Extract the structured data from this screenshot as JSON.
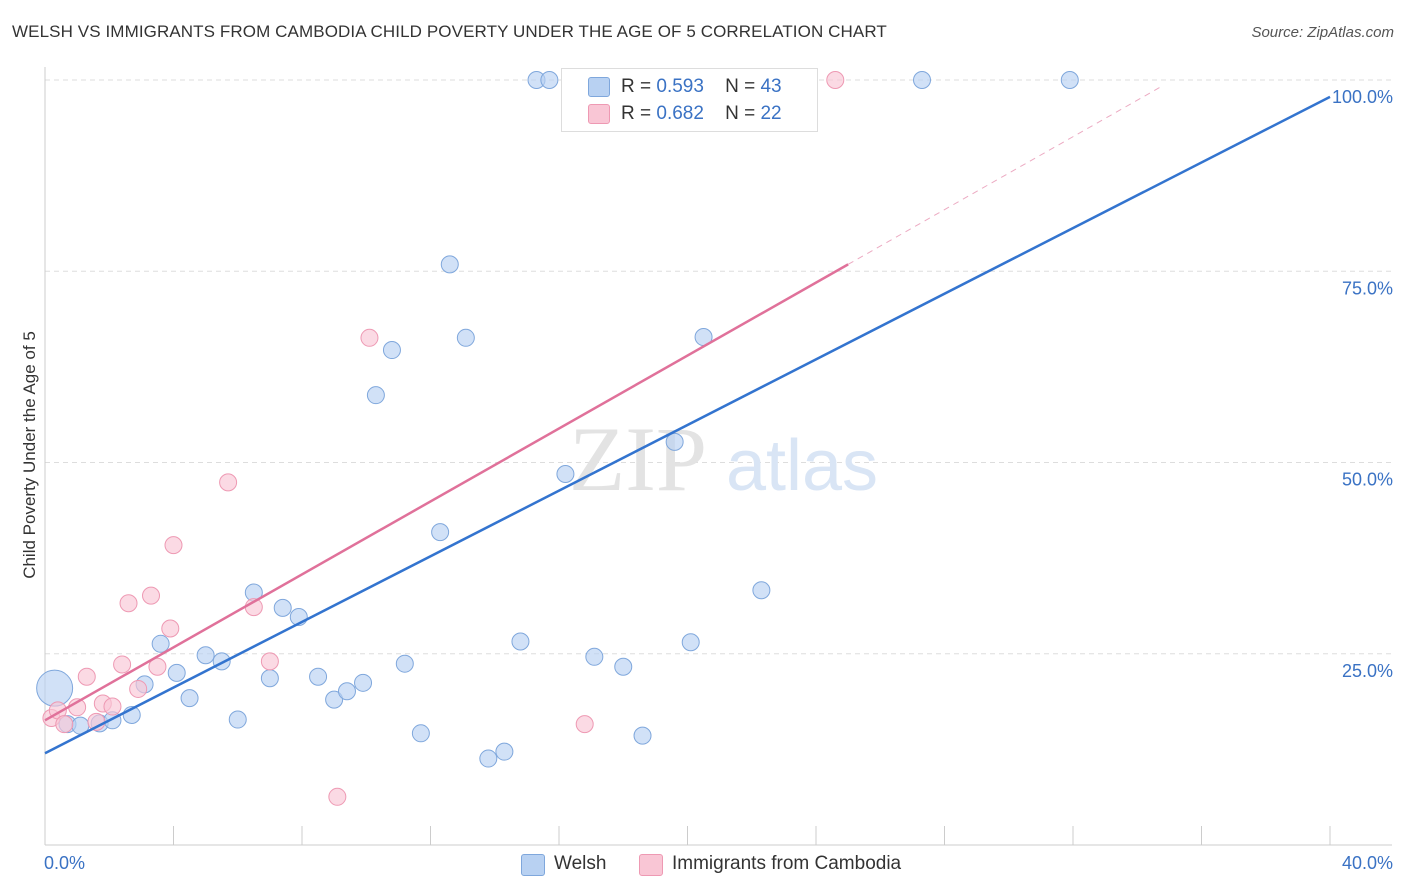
{
  "header": {
    "title": "WELSH VS IMMIGRANTS FROM CAMBODIA CHILD POVERTY UNDER THE AGE OF 5 CORRELATION CHART",
    "source": "Source: ZipAtlas.com"
  },
  "watermark": {
    "zip": "ZIP",
    "atlas": "atlas"
  },
  "legend": {
    "r_label": "R =",
    "n_label": "N =",
    "entries": [
      {
        "r": "0.593",
        "n": "43"
      },
      {
        "r": "0.682",
        "n": "22"
      }
    ]
  },
  "colors": {
    "welsh_fill": "#b8d1f2",
    "welsh_stroke": "#7fa7dc",
    "welsh_line": "#3374cf",
    "cambodia_fill": "#f9c6d5",
    "cambodia_stroke": "#ee99b3",
    "cambodia_line": "#e0719a",
    "axis_label": "#3a72c4",
    "grid": "#dddddd"
  },
  "chart_data": {
    "type": "scatter",
    "title": "WELSH VS IMMIGRANTS FROM CAMBODIA CHILD POVERTY UNDER THE AGE OF 5 CORRELATION CHART",
    "xlabel": "",
    "ylabel": "Child Poverty Under the Age of 5",
    "xlim": [
      0,
      40
    ],
    "ylim": [
      0,
      100
    ],
    "x_tick_labels": {
      "min": "0.0%",
      "max": "40.0%"
    },
    "y_ticks": [
      {
        "value": 25,
        "label": "25.0%"
      },
      {
        "value": 50,
        "label": "50.0%"
      },
      {
        "value": 75,
        "label": "75.0%"
      },
      {
        "value": 100,
        "label": "100.0%"
      }
    ],
    "grid": true,
    "legend_position": "top-center",
    "series": [
      {
        "name": "Welsh",
        "color": "#3374cf",
        "points": [
          {
            "x": 0.3,
            "y": 20.5,
            "size": "large"
          },
          {
            "x": 0.7,
            "y": 15.8
          },
          {
            "x": 1.1,
            "y": 15.6
          },
          {
            "x": 1.7,
            "y": 15.9
          },
          {
            "x": 2.1,
            "y": 16.3
          },
          {
            "x": 2.7,
            "y": 17.0
          },
          {
            "x": 3.1,
            "y": 21.0
          },
          {
            "x": 3.6,
            "y": 26.3
          },
          {
            "x": 4.1,
            "y": 22.5
          },
          {
            "x": 4.5,
            "y": 19.2
          },
          {
            "x": 5.0,
            "y": 24.8
          },
          {
            "x": 5.5,
            "y": 24.0
          },
          {
            "x": 6.0,
            "y": 16.4
          },
          {
            "x": 6.5,
            "y": 33.0
          },
          {
            "x": 7.0,
            "y": 21.8
          },
          {
            "x": 7.4,
            "y": 31.0
          },
          {
            "x": 7.9,
            "y": 29.8
          },
          {
            "x": 8.5,
            "y": 22.0
          },
          {
            "x": 9.0,
            "y": 19.0
          },
          {
            "x": 9.4,
            "y": 20.1
          },
          {
            "x": 9.9,
            "y": 21.2
          },
          {
            "x": 10.3,
            "y": 58.8
          },
          {
            "x": 10.8,
            "y": 64.7
          },
          {
            "x": 11.2,
            "y": 23.7
          },
          {
            "x": 11.7,
            "y": 14.6
          },
          {
            "x": 12.3,
            "y": 40.9
          },
          {
            "x": 12.6,
            "y": 75.9
          },
          {
            "x": 13.1,
            "y": 66.3
          },
          {
            "x": 13.8,
            "y": 11.3
          },
          {
            "x": 14.3,
            "y": 12.2
          },
          {
            "x": 14.8,
            "y": 26.6
          },
          {
            "x": 15.3,
            "y": 100
          },
          {
            "x": 15.7,
            "y": 100
          },
          {
            "x": 16.2,
            "y": 48.5
          },
          {
            "x": 17.1,
            "y": 24.6
          },
          {
            "x": 18.0,
            "y": 23.3
          },
          {
            "x": 18.6,
            "y": 14.3
          },
          {
            "x": 19.6,
            "y": 52.7
          },
          {
            "x": 20.1,
            "y": 26.5
          },
          {
            "x": 20.5,
            "y": 66.4
          },
          {
            "x": 22.3,
            "y": 33.3
          },
          {
            "x": 27.3,
            "y": 100
          },
          {
            "x": 31.9,
            "y": 100
          }
        ],
        "trend": {
          "x_start": 0,
          "y_start": 12.0,
          "x_end": 40,
          "y_end": 97.8
        }
      },
      {
        "name": "Immigrants from Cambodia",
        "color": "#e0719a",
        "points": [
          {
            "x": 0.2,
            "y": 16.6
          },
          {
            "x": 0.4,
            "y": 17.6
          },
          {
            "x": 0.6,
            "y": 15.8
          },
          {
            "x": 1.0,
            "y": 18.0
          },
          {
            "x": 1.3,
            "y": 22.0
          },
          {
            "x": 1.6,
            "y": 16.1
          },
          {
            "x": 1.8,
            "y": 18.5
          },
          {
            "x": 2.1,
            "y": 18.1
          },
          {
            "x": 2.4,
            "y": 23.6
          },
          {
            "x": 2.6,
            "y": 31.6
          },
          {
            "x": 2.9,
            "y": 20.4
          },
          {
            "x": 3.3,
            "y": 32.6
          },
          {
            "x": 3.5,
            "y": 23.3
          },
          {
            "x": 3.9,
            "y": 28.3
          },
          {
            "x": 4.0,
            "y": 39.2
          },
          {
            "x": 5.7,
            "y": 47.4
          },
          {
            "x": 6.5,
            "y": 31.1
          },
          {
            "x": 7.0,
            "y": 24.0
          },
          {
            "x": 9.1,
            "y": 6.3
          },
          {
            "x": 10.1,
            "y": 66.3
          },
          {
            "x": 16.8,
            "y": 15.8
          },
          {
            "x": 24.6,
            "y": 100
          }
        ],
        "trend": {
          "x_start": 0,
          "y_start": 16.3,
          "x_end": 25,
          "y_end": 75.9,
          "dashed_to_x": 34.8
        }
      }
    ]
  },
  "bottom_legend": {
    "items": [
      {
        "label": "Welsh"
      },
      {
        "label": "Immigrants from Cambodia"
      }
    ]
  }
}
